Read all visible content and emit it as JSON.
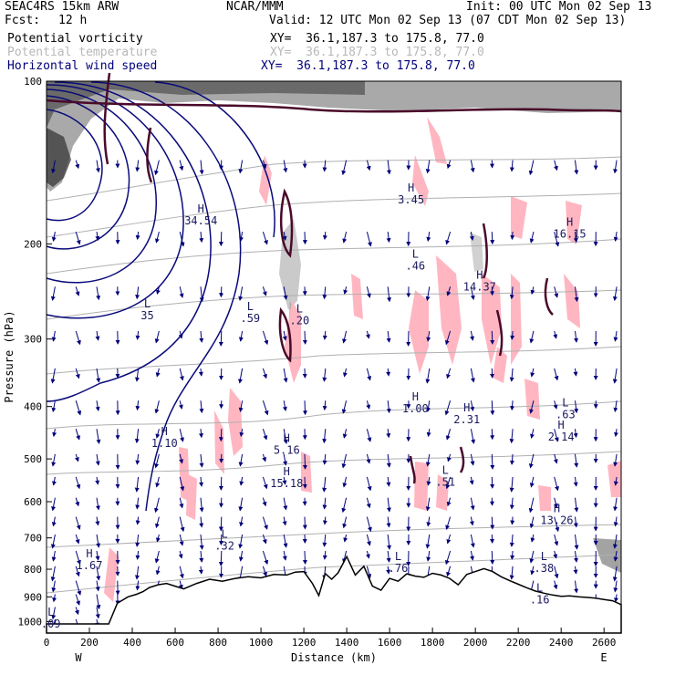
{
  "header": {
    "model": "SEAC4RS 15km ARW",
    "org": "NCAR/MMM",
    "init": "Init: 00 UTC Mon 02 Sep 13",
    "fcst_label": "Fcst:",
    "fcst_value": "12 h",
    "valid": "Valid: 12 UTC Mon 02 Sep 13 (07 CDT Mon 02 Sep 13)"
  },
  "legend": [
    {
      "field": "Potential vorticity",
      "xy": "XY=  36.1,187.3 to 175.8, 77.0",
      "color": "#000000"
    },
    {
      "field": "Potential temperature",
      "xy": "XY=  36.1,187.3 to 175.8, 77.0",
      "color": "#b8b8b8"
    },
    {
      "field": "Horizontal wind speed",
      "xy": "XY=  36.1,187.3 to 175.8, 77.0",
      "color": "#00007a"
    }
  ],
  "chart_data": {
    "type": "cross-section",
    "xlabel": "Distance (km)",
    "ylabel": "Pressure (hPa)",
    "xlim": [
      0,
      2680
    ],
    "ylim": [
      1050,
      100
    ],
    "y_scale": "log",
    "x_ticks": [
      0,
      200,
      400,
      600,
      800,
      1000,
      1200,
      1400,
      1600,
      1800,
      2000,
      2200,
      2400,
      2600
    ],
    "y_ticks": [
      1000,
      900,
      800,
      700,
      600,
      500,
      400,
      300,
      200,
      100
    ],
    "x_end_labels": {
      "left": "W",
      "right": "E"
    },
    "terrain_surface": {
      "x": [
        0,
        290,
        330,
        380,
        420,
        450,
        480,
        520,
        560,
        600,
        640,
        700,
        760,
        820,
        880,
        940,
        1000,
        1060,
        1120,
        1160,
        1200,
        1240,
        1270,
        1300,
        1330,
        1360,
        1400,
        1440,
        1480,
        1520,
        1560,
        1600,
        1640,
        1680,
        1720,
        1760,
        1800,
        1840,
        1880,
        1920,
        1960,
        2000,
        2040,
        2080,
        2120,
        2160,
        2200,
        2240,
        2280,
        2320,
        2360,
        2400,
        2440,
        2480,
        2520,
        2560,
        2600,
        2640,
        2680
      ],
      "p": [
        1010,
        1010,
        925,
        900,
        890,
        880,
        865,
        855,
        850,
        860,
        870,
        850,
        835,
        842,
        832,
        826,
        830,
        818,
        820,
        810,
        808,
        850,
        895,
        815,
        835,
        812,
        758,
        820,
        790,
        860,
        875,
        832,
        842,
        816,
        824,
        828,
        814,
        820,
        832,
        855,
        818,
        808,
        798,
        808,
        826,
        840,
        853,
        866,
        878,
        886,
        893,
        898,
        896,
        900,
        902,
        905,
        910,
        915,
        930
      ]
    },
    "wind_speed_contours": [
      "10",
      "15",
      "20",
      "25",
      "30",
      "35",
      "40",
      "45",
      "50"
    ],
    "potential_temperature_contours": [
      "300",
      "315",
      "320",
      "325",
      "330",
      "335",
      "340",
      "345",
      "355"
    ],
    "extrema": [
      {
        "type": "H",
        "value": "34.54",
        "x": 720,
        "p": 175
      },
      {
        "type": "L",
        "value": "35",
        "x": 470,
        "p": 262
      },
      {
        "type": "L",
        "value": ".59",
        "x": 950,
        "p": 265
      },
      {
        "type": "L",
        "value": ".20",
        "x": 1180,
        "p": 268
      },
      {
        "type": "H",
        "value": "3.45",
        "x": 1700,
        "p": 160
      },
      {
        "type": "L",
        "value": ".46",
        "x": 1720,
        "p": 212
      },
      {
        "type": "H",
        "value": "14.37",
        "x": 2020,
        "p": 232
      },
      {
        "type": "H",
        "value": "16.15",
        "x": 2440,
        "p": 185
      },
      {
        "type": "H",
        "value": "1.00",
        "x": 1720,
        "p": 390
      },
      {
        "type": "H",
        "value": "2.31",
        "x": 1960,
        "p": 408
      },
      {
        "type": "L",
        "value": ".63",
        "x": 2420,
        "p": 400
      },
      {
        "type": "H",
        "value": "2.14",
        "x": 2400,
        "p": 440
      },
      {
        "type": "H",
        "value": "1.10",
        "x": 550,
        "p": 452
      },
      {
        "type": "H",
        "value": "5.16",
        "x": 1120,
        "p": 465
      },
      {
        "type": "H",
        "value": "15.18",
        "x": 1120,
        "p": 536
      },
      {
        "type": "L",
        "value": ".51",
        "x": 1860,
        "p": 533
      },
      {
        "type": "H",
        "value": "13.26",
        "x": 2380,
        "p": 628
      },
      {
        "type": "L",
        "value": ".32",
        "x": 830,
        "p": 700
      },
      {
        "type": "H",
        "value": "1.67",
        "x": 200,
        "p": 760
      },
      {
        "type": "L",
        "value": ".76",
        "x": 1640,
        "p": 770
      },
      {
        "type": "L",
        "value": ".38",
        "x": 2320,
        "p": 770
      },
      {
        "type": "L",
        "value": ".16",
        "x": 2300,
        "p": 880
      },
      {
        "type": "L",
        "value": ".09",
        "x": 20,
        "p": 975
      }
    ]
  }
}
